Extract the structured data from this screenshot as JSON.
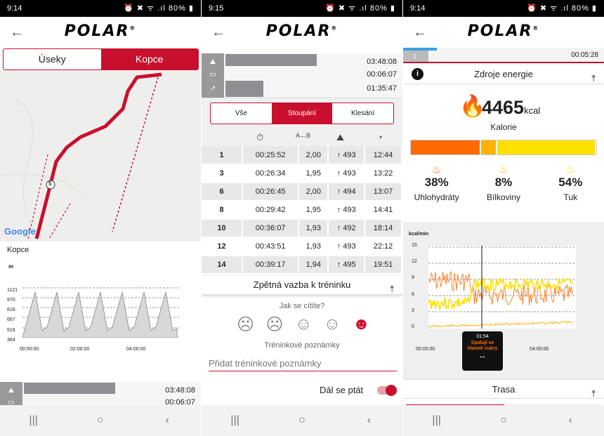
{
  "s1": {
    "time": "9:14",
    "status_right": "⏰ ✖ ᯤ .ıl 80% ▮",
    "tabs": [
      "Úseky",
      "Kopce"
    ],
    "active_tab": 1,
    "map_marker": "5",
    "google": "Google",
    "chart_title": "Kopce",
    "unit": "m",
    "y_ticks": [
      "1121",
      "970",
      "818",
      "667",
      "516",
      "364"
    ],
    "x_ticks": [
      "00:00:00",
      "02:00:00",
      "04:00:00"
    ],
    "rows": [
      {
        "icon": "⛰",
        "time": "03:48:08",
        "frac": 0.55
      },
      {
        "icon": "▭",
        "time": "00:06:07",
        "frac": 0
      }
    ]
  },
  "s2": {
    "time": "9:15",
    "status_right": "⏰ ✖ ᯤ .ıl 80% ▮",
    "rows": [
      {
        "icon": "⛰",
        "time": "03:48:08",
        "frac": 0.55
      },
      {
        "icon": "▭",
        "time": "00:06:07",
        "frac": 0
      },
      {
        "icon": "↗",
        "time": "01:35:47",
        "frac": 0.23
      }
    ],
    "tabs": [
      "Vše",
      "Stoupání",
      "Klesání"
    ],
    "active_tab": 1,
    "col_icons": [
      "⏱",
      "A↔B",
      "⛰",
      "◔"
    ],
    "laps": [
      [
        "1",
        "00:25:52",
        "2,00",
        "↑ 493",
        "12:44"
      ],
      [
        "3",
        "00:26:34",
        "1,95",
        "↑ 493",
        "13:22"
      ],
      [
        "6",
        "00:26:45",
        "2,00",
        "↑ 494",
        "13:07"
      ],
      [
        "8",
        "00:29:42",
        "1,95",
        "↑ 493",
        "14:41"
      ],
      [
        "10",
        "00:36:07",
        "1,93",
        "↑ 492",
        "18:14"
      ],
      [
        "12",
        "00:43:51",
        "1,93",
        "↑ 493",
        "22:12"
      ],
      [
        "14",
        "00:39:17",
        "1,94",
        "↑ 495",
        "19:51"
      ]
    ],
    "feedback_title": "Zpětná vazba k tréninku",
    "feel_q": "Jak se cítíte?",
    "notes_label": "Tréninkové poznámky",
    "notes_placeholder": "Přidat tréninkové poznámky",
    "ask_label": "Dál se ptát"
  },
  "s3": {
    "time": "9:14",
    "status_right": "⏰ ✖ ᯤ .ıl 80% ▮",
    "top_lap": "1",
    "top_time": "00:05:28",
    "energy_title": "Zdroje energie",
    "kcal": "4465",
    "kcal_unit": "kcal",
    "kcal_label": "Kalorie",
    "split": [
      {
        "pct": "38%",
        "label": "Uhlohydráty",
        "color": "#ff6a00",
        "frac": 0.38
      },
      {
        "pct": "8%",
        "label": "Bílkoviny",
        "color": "#ffb300",
        "frac": 0.08
      },
      {
        "pct": "54%",
        "label": "Tuk",
        "color": "#ffe000",
        "frac": 0.54
      }
    ],
    "chart_unit": "kcal/min",
    "y_ticks": [
      "15",
      "12",
      "9",
      "6",
      "3",
      "0"
    ],
    "x_ticks": [
      "00:00:00",
      "04:00:00"
    ],
    "tooltip_time": "01:54",
    "tooltip_text": "Spalují se hlavně cukry",
    "route": "Trasa"
  }
}
